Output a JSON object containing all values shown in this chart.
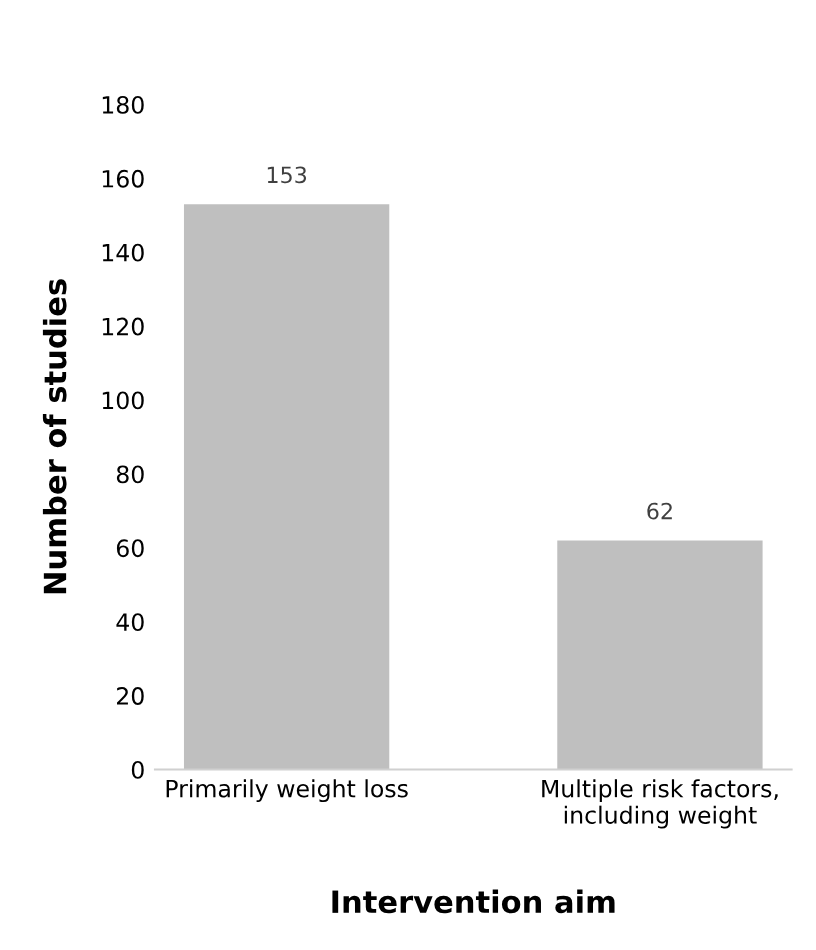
{
  "chart_data": {
    "type": "bar",
    "xlabel": "Intervention aim",
    "ylabel": "Number of studies",
    "categories": [
      "Primarily weight loss",
      "Multiple risk factors,\nincluding weight"
    ],
    "values": [
      153,
      62
    ],
    "color": "#bfbfbf",
    "ylim": [
      0,
      180
    ],
    "yticks": [
      0,
      20,
      40,
      60,
      80,
      100,
      120,
      140,
      160,
      180
    ],
    "grid": false,
    "data_labels": true
  }
}
